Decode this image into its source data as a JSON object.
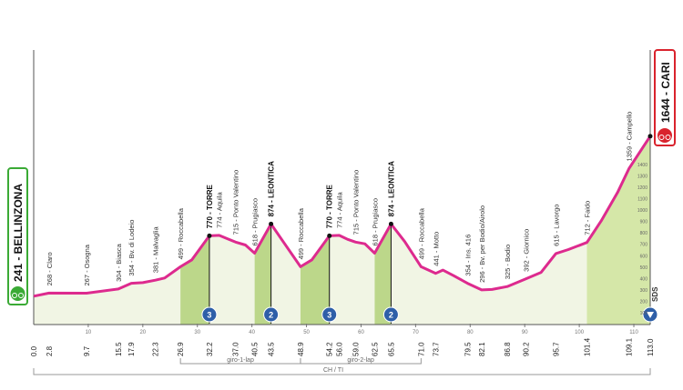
{
  "chart_data": {
    "type": "area",
    "start_label": "241 - BELLINZONA",
    "finish_label": "1644 - CARI",
    "color": "#dd2a8e",
    "x": [
      0,
      2.8,
      9.7,
      15.5,
      17.9,
      20,
      22.3,
      24,
      26.9,
      29,
      32.2,
      34,
      35.5,
      37,
      38.8,
      40.5,
      43.5,
      46,
      48.9,
      51,
      54.2,
      56,
      57.5,
      59,
      60.7,
      62.5,
      65.5,
      68,
      71,
      73.7,
      75,
      77,
      79.5,
      82.1,
      84,
      86.8,
      90.2,
      93,
      95.7,
      98,
      101.4,
      104,
      107,
      109.1,
      113
    ],
    "values": [
      241,
      268,
      267,
      304,
      354,
      360,
      381,
      400,
      499,
      560,
      770,
      774,
      745,
      715,
      690,
      618,
      874,
      700,
      499,
      560,
      770,
      774,
      740,
      715,
      700,
      618,
      874,
      720,
      499,
      441,
      470,
      420,
      354,
      296,
      300,
      325,
      392,
      450,
      615,
      650,
      712,
      900,
      1150,
      1359,
      1644
    ],
    "xlim": [
      0,
      113
    ],
    "ylim": [
      0,
      2400
    ],
    "xticks": [
      10,
      20,
      30,
      40,
      50,
      60,
      70,
      80,
      90,
      100,
      110
    ],
    "yticks": [
      100,
      200,
      300,
      400,
      500,
      600,
      700,
      800,
      900,
      1000,
      1100,
      1200,
      1300,
      1400
    ],
    "waypoints": [
      {
        "km": {
          "value": 0,
          "label": "0.0"
        },
        "label": null
      },
      {
        "km": {
          "value": 2.8,
          "label": "2.8"
        },
        "label": "268 - Claro"
      },
      {
        "km": {
          "value": 9.7,
          "label": "9.7"
        },
        "label": "267 - Osogna"
      },
      {
        "km": {
          "value": 15.5,
          "label": "15.5"
        },
        "label": "304 - Biasca"
      },
      {
        "km": {
          "value": 17.9,
          "label": "17.9"
        },
        "label": "354 - Bv. di Lodeio"
      },
      {
        "km": {
          "value": 22.3,
          "label": "22.3"
        },
        "label": "381 - Malvaglia"
      },
      {
        "km": {
          "value": 26.9,
          "label": "26.9"
        },
        "label": "499 - Roccabella"
      },
      {
        "km": {
          "value": 32.2,
          "label": "32.2"
        },
        "label": "770 - TORRE",
        "bold": true
      },
      {
        "km": {
          "value": 34,
          "label": null
        },
        "label": "774 - Aquila"
      },
      {
        "km": {
          "value": 37,
          "label": "37.0"
        },
        "label": "715 - Ponto Valentino"
      },
      {
        "km": {
          "value": 40.5,
          "label": "40.5"
        },
        "label": "618 - Prugiasco"
      },
      {
        "km": {
          "value": 43.5,
          "label": "43.5"
        },
        "label": "874 - LEONTICA",
        "bold": true
      },
      {
        "km": {
          "value": 48.9,
          "label": "48.9"
        },
        "label": "499 - Roccabella"
      },
      {
        "km": {
          "value": 54.2,
          "label": "54.2"
        },
        "label": "770 - TORRE",
        "bold": true
      },
      {
        "km": {
          "value": 56,
          "label": "56.0"
        },
        "label": "774 - Aquila"
      },
      {
        "km": {
          "value": 59,
          "label": "59.0"
        },
        "label": "715 - Ponto Valentino"
      },
      {
        "km": {
          "value": 62.5,
          "label": "62.5"
        },
        "label": "618 - Prugiasco"
      },
      {
        "km": {
          "value": 65.5,
          "label": "65.5"
        },
        "label": "874 - LEONTICA",
        "bold": true
      },
      {
        "km": {
          "value": 71,
          "label": "71.0"
        },
        "label": "499 - Roccabella"
      },
      {
        "km": {
          "value": 73.7,
          "label": "73.7"
        },
        "label": "441 - Motto"
      },
      {
        "km": {
          "value": 79.5,
          "label": "79.5"
        },
        "label": "354 - Ins. 416"
      },
      {
        "km": {
          "value": 82.1,
          "label": "82.1"
        },
        "label": "296 - Bv. per Bodio/Airolo"
      },
      {
        "km": {
          "value": 86.8,
          "label": "86.8"
        },
        "label": "325 - Bodio"
      },
      {
        "km": {
          "value": 90.2,
          "label": "90.2"
        },
        "label": "392 - Giornico"
      },
      {
        "km": {
          "value": 95.7,
          "label": "95.7"
        },
        "label": "615 - Lavorgo"
      },
      {
        "km": {
          "value": 101.4,
          "label": "101.4"
        },
        "label": "712 - Faido"
      },
      {
        "km": {
          "value": 109.1,
          "label": "109.1"
        },
        "label": "1359 - Campello"
      },
      {
        "km": {
          "value": 113,
          "label": "113.0"
        },
        "label": null
      }
    ],
    "climbs": [
      {
        "from": 26.9,
        "to": 32.2,
        "category": "3"
      },
      {
        "from": 40.5,
        "to": 43.5,
        "category": "2"
      },
      {
        "from": 48.9,
        "to": 54.2,
        "category": "3"
      },
      {
        "from": 62.5,
        "to": 65.5,
        "category": "2"
      }
    ],
    "final_climb": {
      "from": 101.4,
      "to": 113
    },
    "laps": [
      {
        "label": "giro-1-lap",
        "from": 26.9,
        "to": 48.9
      },
      {
        "label": "giro-2-lap",
        "from": 48.9,
        "to": 71
      }
    ],
    "border_label": "CH / TI",
    "sprint_label": "SDS"
  }
}
